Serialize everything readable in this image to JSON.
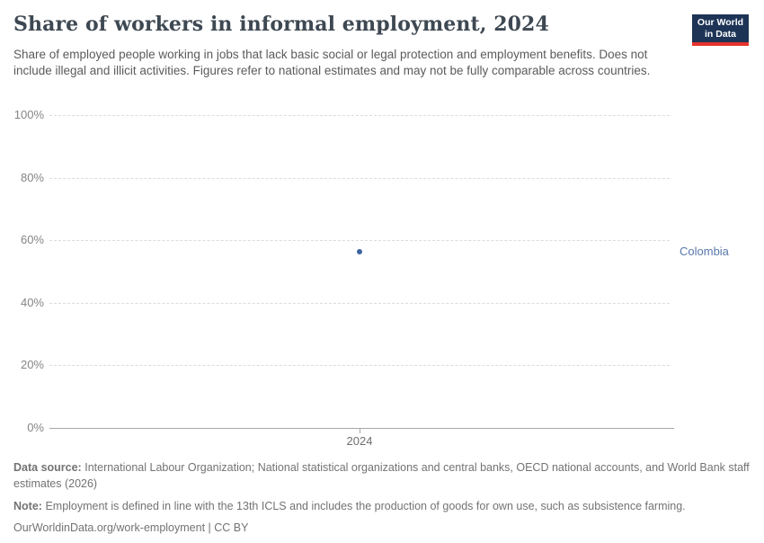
{
  "header": {
    "title": "Share of workers in informal employment, 2024",
    "subtitle": "Share of employed people working in jobs that lack basic social or legal protection and employment benefits. Does not include illegal and illicit activities. Figures refer to national estimates and may not be fully comparable across countries.",
    "logo": {
      "line1": "Our World",
      "line2": "in Data"
    }
  },
  "chart_data": {
    "type": "scatter",
    "title": "Share of workers in informal employment, 2024",
    "x": [
      2024
    ],
    "xlabel": "",
    "ylabel": "",
    "ylim": [
      0,
      100
    ],
    "yticks": [
      0,
      20,
      40,
      60,
      80,
      100
    ],
    "ytick_suffix": "%",
    "grid": "dashed-horizontal",
    "legend_position": "right-entity-label",
    "series": [
      {
        "name": "Colombia",
        "values": [
          56.2
        ],
        "color": "#3d649f",
        "label_color": "#5878ab"
      }
    ]
  },
  "footer": {
    "data_source_label": "Data source:",
    "data_source": "International Labour Organization; National statistical organizations and central banks, OECD national accounts, and World Bank staff estimates (2026)",
    "note_label": "Note:",
    "note": "Employment is defined in line with the 13th ICLS and includes the production of goods for own use, such as subsistence farming.",
    "url": "OurWorldinData.org/work-employment",
    "separator": "|",
    "license": "CC BY"
  },
  "colors": {
    "accent_navy": "#1d3456",
    "accent_red": "#e5332c",
    "series_blue": "#3d649f",
    "entity_label_blue": "#5878ab"
  }
}
